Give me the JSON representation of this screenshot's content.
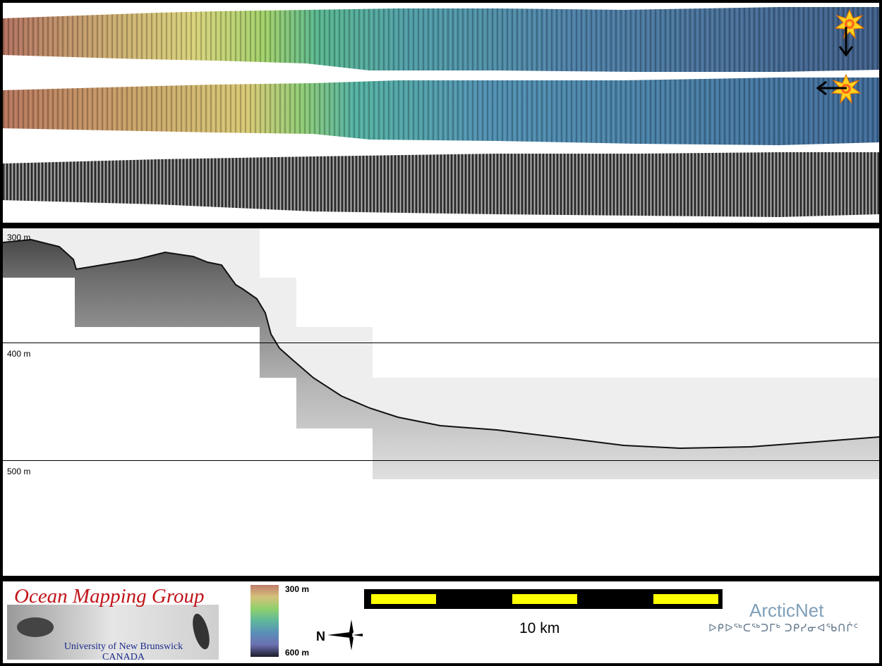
{
  "profile": {
    "depth_labels": [
      "300 m",
      "400 m",
      "500 m"
    ]
  },
  "legend": {
    "colorbar_top": "300 m",
    "colorbar_bottom": "600 m",
    "colorbar_colors": [
      "#c07b6a",
      "#d4c27a",
      "#8fd06d",
      "#5fb79c",
      "#5a8fb8",
      "#6b6fb0",
      "#1d1d2a"
    ],
    "north_label": "N",
    "scale_label": "10 km",
    "scale_colors": [
      "#ffff00",
      "#000000"
    ]
  },
  "logos": {
    "omg_title": "Ocean Mapping Group",
    "omg_line1": "University of New Brunswick",
    "omg_line2": "CANADA",
    "arcticnet": "ArcticNet",
    "arcticnet_syllabics": "ᐅᑭᐅᖅᑕᖅᑐᒥᒃ ᑐᑭᓯᓂᐊᖃᑎᒌᑦ"
  },
  "icons": [
    "sun-illumination-icon",
    "arrow-down-icon",
    "arrow-left-icon",
    "north-arrow-icon"
  ]
}
